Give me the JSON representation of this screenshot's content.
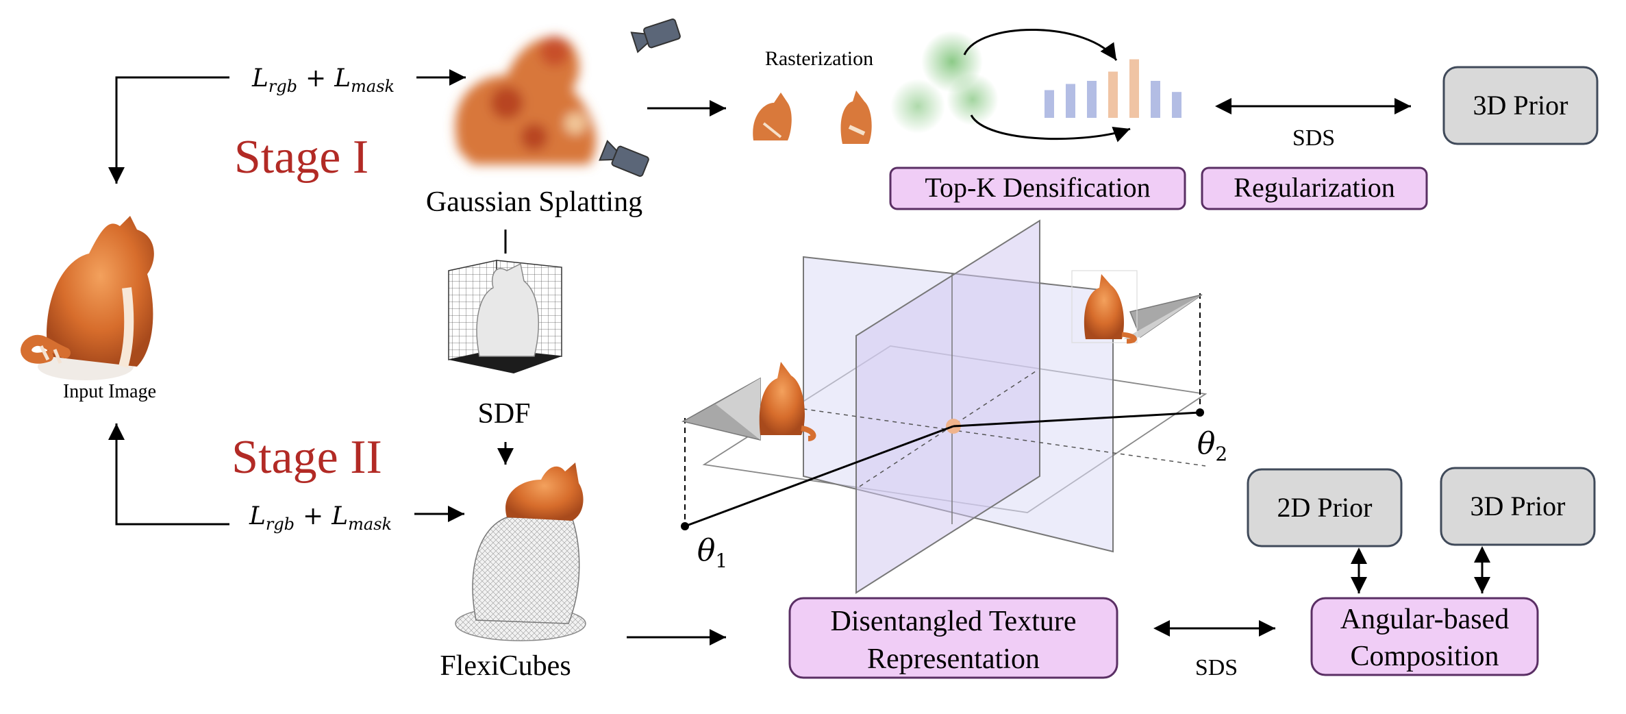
{
  "input": {
    "label": "Input Image"
  },
  "stage1": {
    "title": "Stage I",
    "loss_main": "L",
    "loss_sub1": "rgb",
    "loss_plus": "+",
    "loss_sub2": "mask",
    "gs_label": "Gaussian Splatting",
    "sdf_label": "SDF",
    "raster_label": "Rasterization",
    "topk_label": "Top-K Densification",
    "reg_label": "Regularization",
    "sds_label": "SDS",
    "prior_label": "3D Prior"
  },
  "stage2": {
    "title": "Stage II",
    "loss_main": "L",
    "loss_sub1": "rgb",
    "loss_plus": "+",
    "loss_sub2": "mask",
    "flexi_label": "FlexiCubes",
    "dtr_line1": "Disentangled Texture",
    "dtr_line2": "Representation",
    "sds_label": "SDS",
    "comp_line1": "Angular-based",
    "comp_line2": "Composition",
    "prior2d_label": "2D Prior",
    "prior3d_label": "3D Prior",
    "theta1": "θ",
    "theta1_sub": "1",
    "theta2": "θ",
    "theta2_sub": "2"
  },
  "colors": {
    "stage_title": "#b22a25",
    "purple_box_fill": "#f0cdf6",
    "purple_box_stroke": "#5a2f64",
    "gray_box_fill": "#d9d9d9",
    "gray_box_stroke": "#404a5a",
    "plane_fill": "#dcdcf5",
    "cat_orange": "#d97b3a",
    "center_dot": "#f0b48c"
  },
  "histogram": {
    "bars": [
      0.45,
      0.55,
      0.6,
      0.75,
      0.95,
      0.6,
      0.42
    ],
    "highlighted": [
      3,
      4
    ]
  }
}
